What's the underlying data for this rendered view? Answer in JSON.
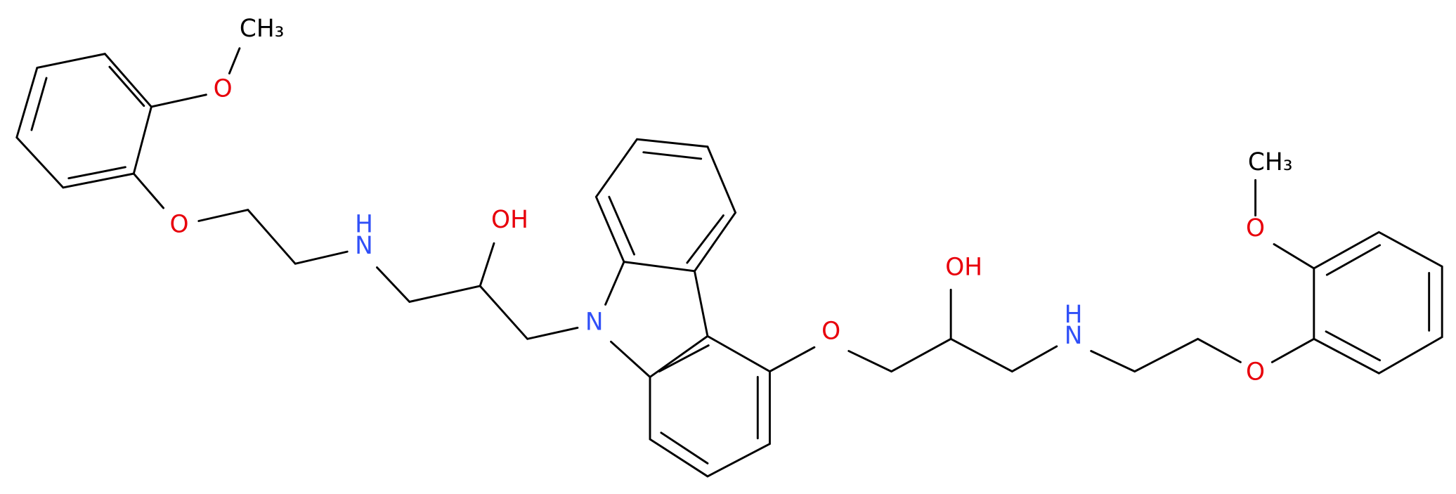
{
  "atoms": [
    "CH₃",
    "O",
    "O",
    "N",
    "H",
    "OH",
    "N",
    "O",
    "OH",
    "N",
    "H",
    "O",
    "O",
    "CH₃"
  ]
}
